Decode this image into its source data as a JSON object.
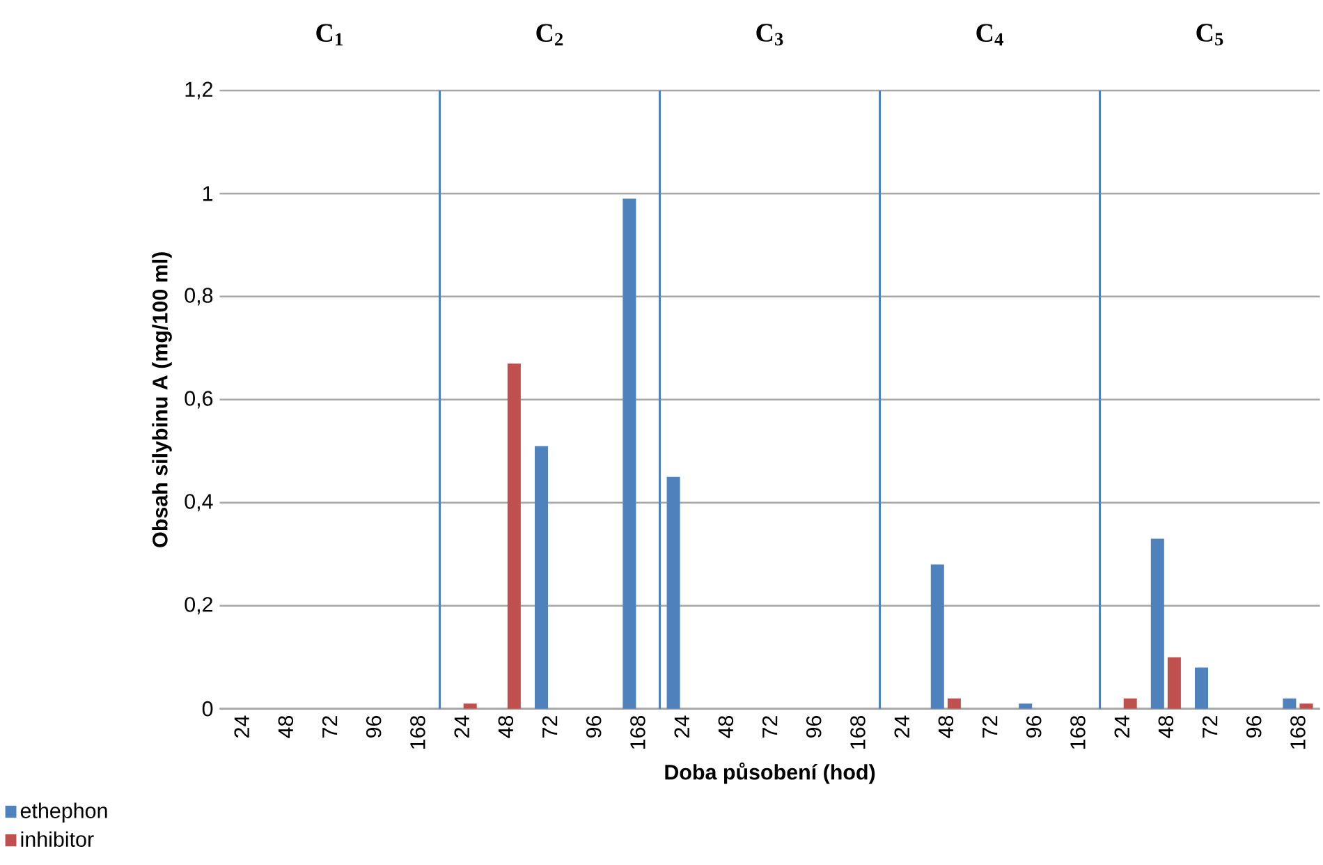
{
  "chart_data": {
    "type": "bar",
    "ylabel": "Obsah silybinu A (mg/100 ml)",
    "xlabel": "Doba působení (hod)",
    "categories": [
      "24",
      "48",
      "72",
      "96",
      "168",
      "24",
      "48",
      "72",
      "96",
      "168",
      "24",
      "48",
      "72",
      "96",
      "168",
      "24",
      "48",
      "72",
      "96",
      "168",
      "24",
      "48",
      "72",
      "96",
      "168"
    ],
    "series": [
      {
        "name": "ethephon",
        "color": "#4f81bd",
        "values": [
          0,
          0,
          0,
          0,
          0,
          0,
          0,
          0.51,
          0,
          0.99,
          0.45,
          0,
          0,
          0,
          0,
          0,
          0.28,
          0,
          0.01,
          0,
          0,
          0.33,
          0.08,
          0,
          0.02
        ]
      },
      {
        "name": "inhibitor",
        "color": "#c0504d",
        "values": [
          0,
          0,
          0,
          0,
          0,
          0.01,
          0.67,
          0,
          0,
          0,
          0,
          0,
          0,
          0,
          0,
          0,
          0.02,
          0,
          0,
          0,
          0.02,
          0.1,
          0,
          0,
          0.01
        ]
      }
    ],
    "ylim": [
      0,
      1.2
    ],
    "yticks": [
      0,
      {
        "value": 0.2,
        "label": "0,2"
      },
      {
        "value": 0.4,
        "label": "0,4"
      },
      {
        "value": 0.6,
        "label": "0,6"
      },
      {
        "value": 0.8,
        "label": "0,8"
      },
      1,
      {
        "value": 1.2,
        "label": "1,2"
      }
    ],
    "annotations": [
      "**C$_{1}$**",
      "**C$_{2}$**",
      "**C$_{3}$**",
      "**C$_{4}$**",
      "**C$_{5}$**"
    ],
    "grid": "y",
    "legend": "bottom left"
  }
}
